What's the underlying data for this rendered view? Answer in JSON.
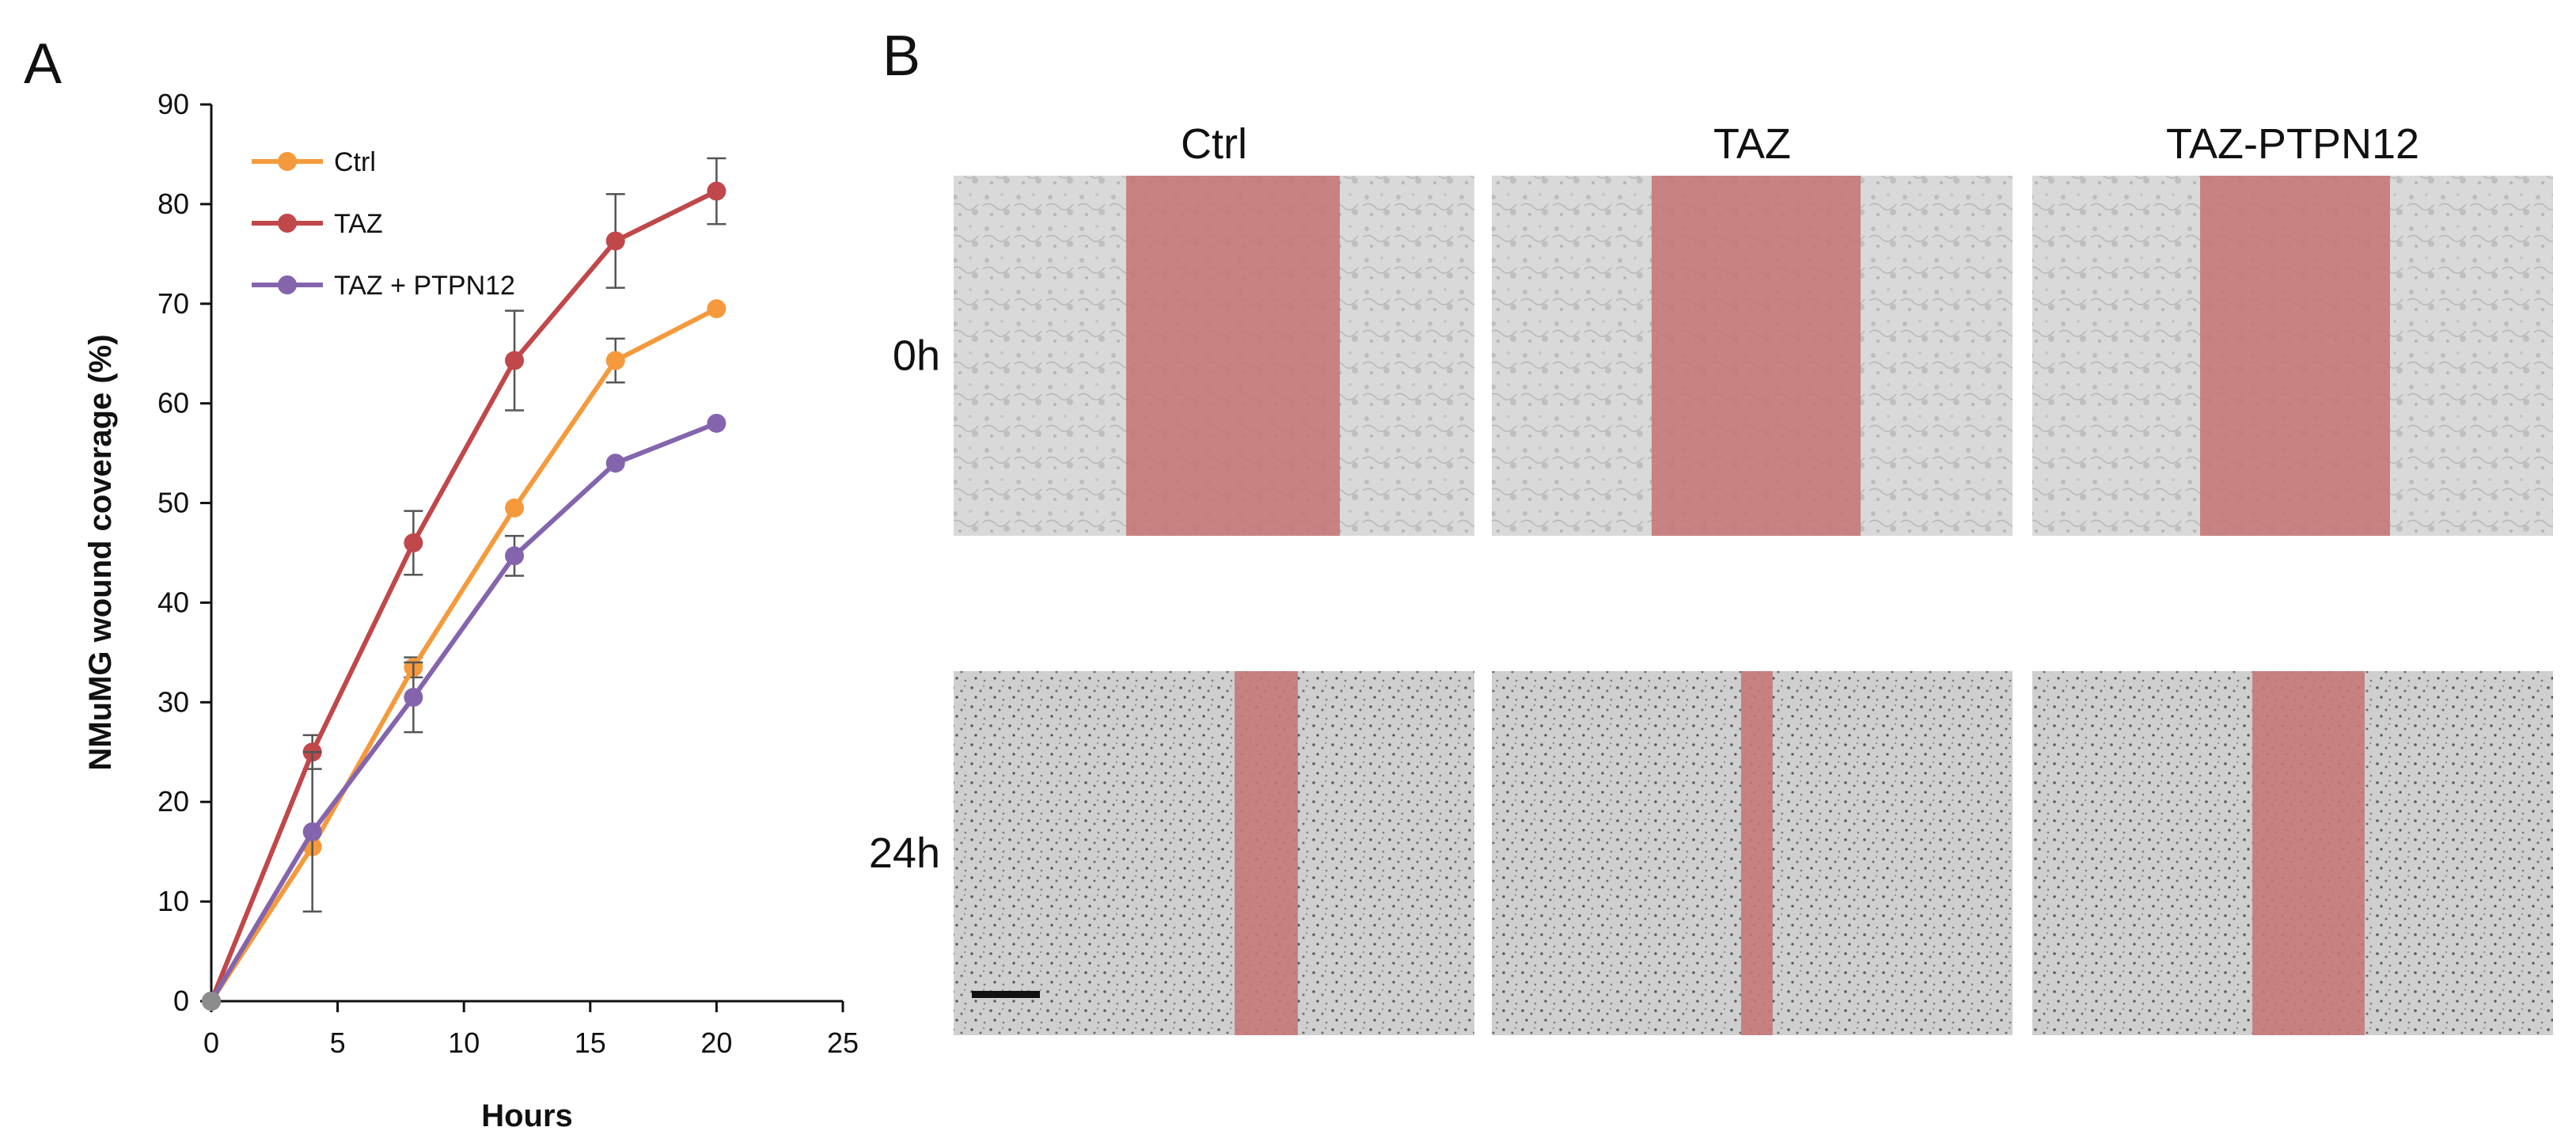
{
  "panels": {
    "a_letter": "A",
    "b_letter": "B"
  },
  "chart_data": {
    "type": "line",
    "title": "",
    "xlabel": "Hours",
    "ylabel": "NMuMG wound coverage (%)",
    "xlim": [
      0,
      25
    ],
    "ylim": [
      0,
      90
    ],
    "xticks": [
      "0",
      "5",
      "10",
      "15",
      "20",
      "25"
    ],
    "yticks": [
      "0",
      "10",
      "20",
      "30",
      "40",
      "50",
      "60",
      "70",
      "80",
      "90"
    ],
    "x": [
      0,
      4,
      8,
      12,
      16,
      20
    ],
    "grid": false,
    "legend_position": "top-left",
    "series": [
      {
        "name": "Ctrl",
        "color": "#f59a3c",
        "values": [
          0,
          15.5,
          33.5,
          49.5,
          64.3,
          69.5
        ],
        "errors": [
          0,
          0,
          1.0,
          0,
          2.2,
          0
        ]
      },
      {
        "name": "TAZ",
        "color": "#c0474a",
        "values": [
          0,
          25,
          46,
          64.3,
          76.3,
          81.3
        ],
        "errors": [
          0,
          1.7,
          3.2,
          5.0,
          4.7,
          3.3
        ]
      },
      {
        "name": "TAZ + PTPN12",
        "color": "#8465ad",
        "values": [
          0,
          17,
          30.5,
          44.7,
          54,
          58
        ],
        "errors": [
          0,
          8.0,
          3.5,
          2.0,
          0,
          0
        ]
      }
    ]
  },
  "micrographs": {
    "columns": [
      "Ctrl",
      "TAZ",
      "TAZ-PTPN12"
    ],
    "rows": [
      "0h",
      "24h"
    ],
    "wound_color": "#c57878",
    "scale_bar": true
  }
}
